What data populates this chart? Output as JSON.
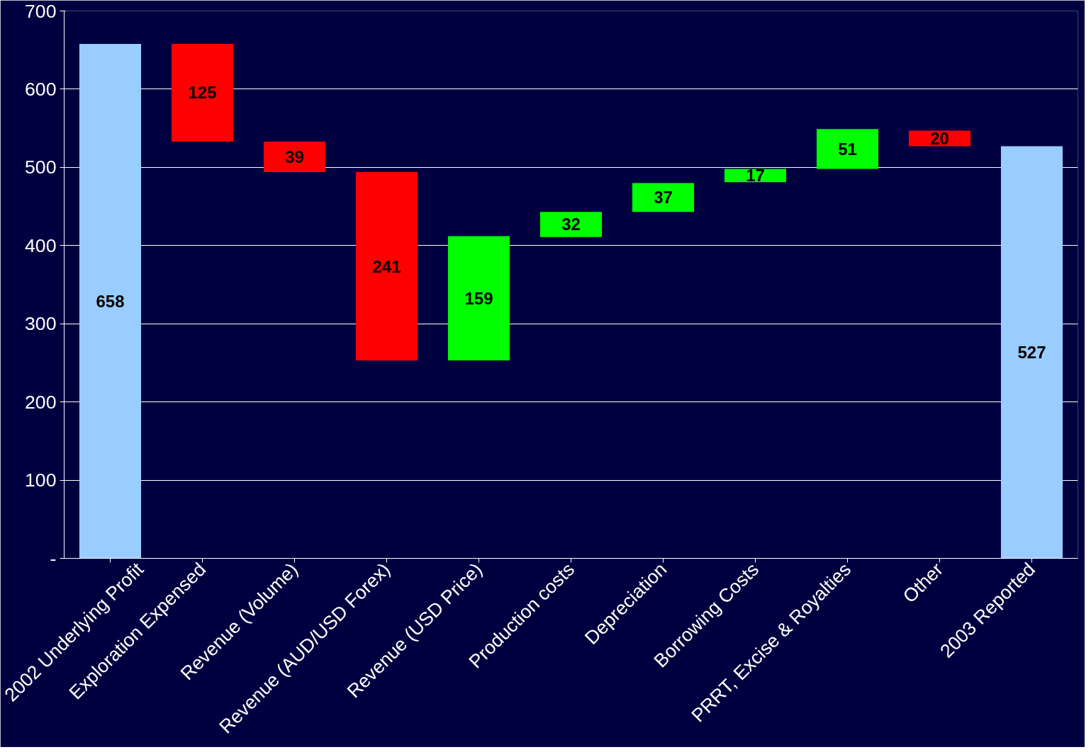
{
  "chart_data": {
    "type": "bar",
    "categories": [
      "2002 Underlying Profit",
      "Exploration Expensed",
      "Revenue (Volume)",
      "Revenue (AUD/USD Forex)",
      "Revenue (USD Price)",
      "Production costs",
      "Depreciation",
      "Borrowing Costs",
      "PRRT, Excise & Royalties",
      "Other",
      "2003 Reported"
    ],
    "base": [
      0,
      658,
      533,
      494,
      253,
      411,
      443,
      481,
      498,
      547,
      0
    ],
    "values": [
      658,
      -125,
      -39,
      -241,
      159,
      32,
      37,
      17,
      51,
      -20,
      527
    ],
    "value_labels": [
      "658",
      "125",
      "39",
      "241",
      "159",
      "32",
      "37",
      "17",
      "51",
      "20",
      "527"
    ],
    "colors": [
      "#99ccff",
      "#ff0000",
      "#ff0000",
      "#ff0000",
      "#00ff00",
      "#00ff00",
      "#00ff00",
      "#00ff00",
      "#00ff00",
      "#ff0000",
      "#99ccff"
    ],
    "ylim": [
      0,
      700
    ],
    "yticks": [
      {
        "value": 0,
        "label": "-"
      },
      100,
      200,
      300,
      400,
      500,
      600,
      700
    ],
    "grid": "y"
  }
}
